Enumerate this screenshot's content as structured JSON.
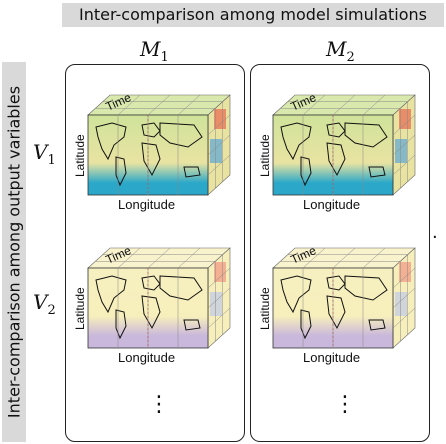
{
  "title_top": "Inter-comparison among model simulations",
  "title_side": "Inter-comparison among output variables",
  "models": [
    {
      "symbol": "M",
      "sub": "1"
    },
    {
      "symbol": "M",
      "sub": "2"
    }
  ],
  "variables": [
    {
      "symbol": "V",
      "sub": "1"
    },
    {
      "symbol": "V",
      "sub": "2"
    }
  ],
  "axis_labels": {
    "time": "Time",
    "latitude": "Latitude",
    "longitude": "Longitude"
  },
  "continuation_mark": "⋮",
  "trailing_mark": ".",
  "palettes": {
    "V1": {
      "top": "#cfe39a",
      "mid": "#e9e3a2",
      "bottom": "#2aa7c9",
      "hot": "#e8765a",
      "cold": "#5aa7d8"
    },
    "V2": {
      "top": "#f6efc0",
      "mid": "#f7efbb",
      "bottom": "#c9b7dc",
      "hot": "#f1a08a",
      "cold": "#bfc9e8"
    }
  }
}
